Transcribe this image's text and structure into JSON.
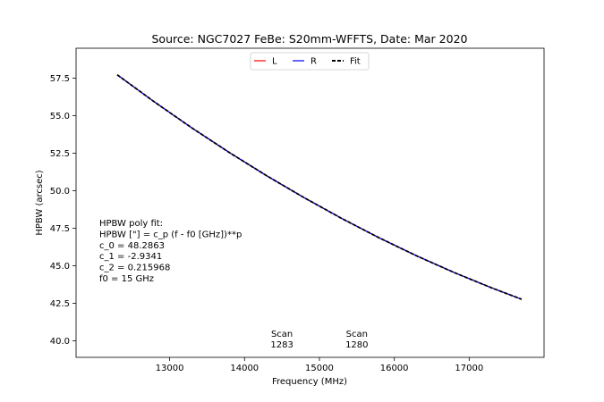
{
  "chart_data": {
    "type": "line",
    "title": "Source: NGC7027 FeBe: S20mm-WFFTS, Date: Mar 2020",
    "xlabel": "Frequency (MHz)",
    "ylabel": "HPBW (arcsec)",
    "xlim": [
      11750,
      18000
    ],
    "ylim": [
      38.9,
      59.5
    ],
    "x_ticks": [
      13000,
      14000,
      15000,
      16000,
      17000
    ],
    "x_tick_labels": [
      "13000",
      "14000",
      "15000",
      "16000",
      "17000"
    ],
    "y_ticks": [
      40.0,
      42.5,
      45.0,
      47.5,
      50.0,
      52.5,
      55.0,
      57.5
    ],
    "y_tick_labels": [
      "40.0",
      "42.5",
      "45.0",
      "47.5",
      "50.0",
      "52.5",
      "55.0",
      "57.5"
    ],
    "grid": false,
    "legend": {
      "placement": "top-center",
      "entries": [
        {
          "label": "L",
          "color": "#ff0000",
          "style": "solid"
        },
        {
          "label": "R",
          "color": "#0000ff",
          "style": "solid"
        },
        {
          "label": "Fit",
          "color": "#000000",
          "style": "dashed"
        }
      ]
    },
    "series": [
      {
        "name": "L",
        "color": "#ff0000",
        "x": [
          12300,
          12800,
          13300,
          13800,
          14300,
          14800,
          15300,
          15800,
          16300,
          16800,
          17300,
          17700
        ],
        "y": [
          57.73,
          55.91,
          54.18,
          52.54,
          50.99,
          49.53,
          48.15,
          46.86,
          45.66,
          44.55,
          43.53,
          42.77
        ]
      },
      {
        "name": "R",
        "color": "#0000ff",
        "x": [
          12300,
          12800,
          13300,
          13800,
          14300,
          14800,
          15300,
          15800,
          16300,
          16800,
          17300,
          17700
        ],
        "y": [
          57.73,
          55.91,
          54.18,
          52.54,
          50.99,
          49.53,
          48.15,
          46.86,
          45.66,
          44.55,
          43.53,
          42.77
        ]
      },
      {
        "name": "Fit",
        "color": "#000000",
        "style": "dashed",
        "x": [
          12300,
          12800,
          13300,
          13800,
          14300,
          14800,
          15300,
          15800,
          16300,
          16800,
          17300,
          17700
        ],
        "y": [
          57.73,
          55.91,
          54.18,
          52.54,
          50.99,
          49.53,
          48.15,
          46.86,
          45.66,
          44.55,
          43.53,
          42.77
        ]
      }
    ],
    "fit_annotation": [
      "HPBW poly fit:",
      "HPBW [\"] = c_p (f - f0 [GHz])**p",
      "c_0 = 48.2863",
      "c_1 = -2.9341",
      "c_2 = 0.215968",
      "f0 = 15 GHz"
    ],
    "scan_labels": [
      {
        "line1": "Scan",
        "line2": "1283",
        "x": 14500,
        "y": 40.1
      },
      {
        "line1": "Scan",
        "line2": "1280",
        "x": 15500,
        "y": 40.1
      }
    ]
  }
}
